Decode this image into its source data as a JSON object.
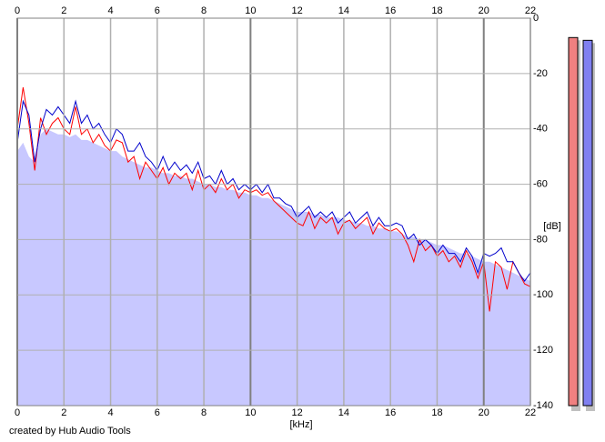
{
  "chart_data": {
    "type": "spectrum",
    "xlabel": "[kHz]",
    "ylabel": "[dB]",
    "credit": "created by Hub Audio Tools",
    "xlim": [
      0,
      22
    ],
    "ylim": [
      -140,
      0
    ],
    "xticks": [
      0,
      2,
      4,
      6,
      8,
      10,
      12,
      14,
      16,
      18,
      20,
      22
    ],
    "yticks": [
      0,
      -20,
      -40,
      -60,
      -80,
      -100,
      -120,
      -140
    ],
    "grid": true,
    "x": [
      0,
      0.25,
      0.5,
      0.75,
      1,
      1.25,
      1.5,
      1.75,
      2,
      2.25,
      2.5,
      2.75,
      3,
      3.25,
      3.5,
      3.75,
      4,
      4.25,
      4.5,
      4.75,
      5,
      5.25,
      5.5,
      5.75,
      6,
      6.25,
      6.5,
      6.75,
      7,
      7.25,
      7.5,
      7.75,
      8,
      8.25,
      8.5,
      8.75,
      9,
      9.25,
      9.5,
      9.75,
      10,
      10.25,
      10.5,
      10.75,
      11,
      11.25,
      11.5,
      11.75,
      12,
      12.25,
      12.5,
      12.75,
      13,
      13.25,
      13.5,
      13.75,
      14,
      14.25,
      14.5,
      14.75,
      15,
      15.25,
      15.5,
      15.75,
      16,
      16.25,
      16.5,
      16.75,
      17,
      17.25,
      17.5,
      17.75,
      18,
      18.25,
      18.5,
      18.75,
      19,
      19.25,
      19.5,
      19.75,
      20,
      20.25,
      20.5,
      20.75,
      21,
      21.25,
      21.5,
      21.75,
      22
    ],
    "series": [
      {
        "color": "#c8c8ff",
        "fill": true,
        "values": [
          -48,
          -45,
          -50,
          -52,
          -42,
          -40,
          -41,
          -42,
          -42,
          -43,
          -42,
          -44,
          -44,
          -45,
          -46,
          -47,
          -48,
          -48,
          -50,
          -51,
          -52,
          -53,
          -54,
          -54,
          -55,
          -56,
          -56,
          -57,
          -57,
          -58,
          -58,
          -59,
          -60,
          -60,
          -61,
          -61,
          -62,
          -62,
          -63,
          -63,
          -64,
          -64,
          -65,
          -65,
          -66,
          -67,
          -68,
          -69,
          -70,
          -70,
          -70,
          -71,
          -71,
          -72,
          -72,
          -72,
          -73,
          -73,
          -74,
          -74,
          -75,
          -75,
          -76,
          -76,
          -77,
          -77,
          -78,
          -79,
          -79,
          -80,
          -80,
          -81,
          -82,
          -82,
          -83,
          -84,
          -85,
          -85,
          -86,
          -87,
          -88,
          -88,
          -89,
          -90,
          -91,
          -92,
          -93,
          -94,
          -95
        ]
      },
      {
        "color": "#ff0000",
        "fill": false,
        "values": [
          -40,
          -25,
          -38,
          -55,
          -36,
          -42,
          -38,
          -36,
          -40,
          -42,
          -32,
          -42,
          -40,
          -45,
          -42,
          -46,
          -48,
          -44,
          -45,
          -52,
          -50,
          -58,
          -52,
          -55,
          -58,
          -54,
          -60,
          -56,
          -58,
          -56,
          -62,
          -55,
          -62,
          -60,
          -63,
          -58,
          -62,
          -60,
          -65,
          -62,
          -63,
          -62,
          -64,
          -63,
          -66,
          -68,
          -70,
          -72,
          -74,
          -75,
          -70,
          -76,
          -72,
          -74,
          -72,
          -78,
          -74,
          -73,
          -76,
          -74,
          -72,
          -78,
          -74,
          -76,
          -77,
          -76,
          -78,
          -82,
          -88,
          -80,
          -84,
          -82,
          -86,
          -84,
          -88,
          -86,
          -90,
          -84,
          -88,
          -94,
          -88,
          -106,
          -88,
          -90,
          -98,
          -88,
          -92,
          -96,
          -97
        ]
      },
      {
        "color": "#0000cc",
        "fill": false,
        "values": [
          -45,
          -30,
          -35,
          -52,
          -40,
          -33,
          -35,
          -32,
          -35,
          -38,
          -30,
          -38,
          -35,
          -40,
          -38,
          -42,
          -45,
          -40,
          -42,
          -48,
          -48,
          -45,
          -50,
          -52,
          -55,
          -50,
          -55,
          -52,
          -55,
          -53,
          -56,
          -52,
          -58,
          -57,
          -60,
          -55,
          -60,
          -58,
          -62,
          -60,
          -62,
          -60,
          -63,
          -60,
          -65,
          -65,
          -67,
          -68,
          -72,
          -70,
          -68,
          -72,
          -70,
          -72,
          -70,
          -74,
          -72,
          -70,
          -74,
          -72,
          -70,
          -75,
          -72,
          -75,
          -75,
          -74,
          -75,
          -80,
          -78,
          -82,
          -80,
          -82,
          -85,
          -82,
          -85,
          -85,
          -88,
          -83,
          -86,
          -92,
          -85,
          -86,
          -85,
          -83,
          -88,
          -88,
          -92,
          -95,
          -92
        ]
      }
    ],
    "meters": [
      {
        "color": "#f08080",
        "value": -7
      },
      {
        "color": "#8080f0",
        "value": -8
      }
    ]
  }
}
